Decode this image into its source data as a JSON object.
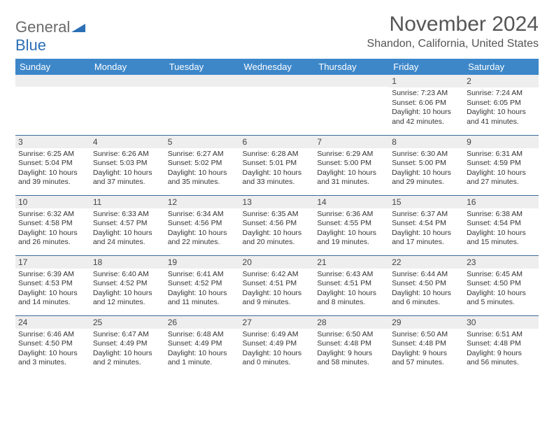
{
  "logo": {
    "word1": "General",
    "word2": "Blue"
  },
  "title": "November 2024",
  "location": "Shandon, California, United States",
  "weekdays": [
    "Sunday",
    "Monday",
    "Tuesday",
    "Wednesday",
    "Thursday",
    "Friday",
    "Saturday"
  ],
  "colors": {
    "header_bg": "#3d87c9",
    "header_text": "#ffffff",
    "daynum_bg": "#eeeeee",
    "cell_border": "#3d6a9a",
    "logo_blue": "#2b6fb5",
    "logo_gray": "#6a6a6a"
  },
  "weeks": [
    [
      {
        "n": "",
        "sr": "",
        "ss": "",
        "dl": ""
      },
      {
        "n": "",
        "sr": "",
        "ss": "",
        "dl": ""
      },
      {
        "n": "",
        "sr": "",
        "ss": "",
        "dl": ""
      },
      {
        "n": "",
        "sr": "",
        "ss": "",
        "dl": ""
      },
      {
        "n": "",
        "sr": "",
        "ss": "",
        "dl": ""
      },
      {
        "n": "1",
        "sr": "Sunrise: 7:23 AM",
        "ss": "Sunset: 6:06 PM",
        "dl": "Daylight: 10 hours and 42 minutes."
      },
      {
        "n": "2",
        "sr": "Sunrise: 7:24 AM",
        "ss": "Sunset: 6:05 PM",
        "dl": "Daylight: 10 hours and 41 minutes."
      }
    ],
    [
      {
        "n": "3",
        "sr": "Sunrise: 6:25 AM",
        "ss": "Sunset: 5:04 PM",
        "dl": "Daylight: 10 hours and 39 minutes."
      },
      {
        "n": "4",
        "sr": "Sunrise: 6:26 AM",
        "ss": "Sunset: 5:03 PM",
        "dl": "Daylight: 10 hours and 37 minutes."
      },
      {
        "n": "5",
        "sr": "Sunrise: 6:27 AM",
        "ss": "Sunset: 5:02 PM",
        "dl": "Daylight: 10 hours and 35 minutes."
      },
      {
        "n": "6",
        "sr": "Sunrise: 6:28 AM",
        "ss": "Sunset: 5:01 PM",
        "dl": "Daylight: 10 hours and 33 minutes."
      },
      {
        "n": "7",
        "sr": "Sunrise: 6:29 AM",
        "ss": "Sunset: 5:00 PM",
        "dl": "Daylight: 10 hours and 31 minutes."
      },
      {
        "n": "8",
        "sr": "Sunrise: 6:30 AM",
        "ss": "Sunset: 5:00 PM",
        "dl": "Daylight: 10 hours and 29 minutes."
      },
      {
        "n": "9",
        "sr": "Sunrise: 6:31 AM",
        "ss": "Sunset: 4:59 PM",
        "dl": "Daylight: 10 hours and 27 minutes."
      }
    ],
    [
      {
        "n": "10",
        "sr": "Sunrise: 6:32 AM",
        "ss": "Sunset: 4:58 PM",
        "dl": "Daylight: 10 hours and 26 minutes."
      },
      {
        "n": "11",
        "sr": "Sunrise: 6:33 AM",
        "ss": "Sunset: 4:57 PM",
        "dl": "Daylight: 10 hours and 24 minutes."
      },
      {
        "n": "12",
        "sr": "Sunrise: 6:34 AM",
        "ss": "Sunset: 4:56 PM",
        "dl": "Daylight: 10 hours and 22 minutes."
      },
      {
        "n": "13",
        "sr": "Sunrise: 6:35 AM",
        "ss": "Sunset: 4:56 PM",
        "dl": "Daylight: 10 hours and 20 minutes."
      },
      {
        "n": "14",
        "sr": "Sunrise: 6:36 AM",
        "ss": "Sunset: 4:55 PM",
        "dl": "Daylight: 10 hours and 19 minutes."
      },
      {
        "n": "15",
        "sr": "Sunrise: 6:37 AM",
        "ss": "Sunset: 4:54 PM",
        "dl": "Daylight: 10 hours and 17 minutes."
      },
      {
        "n": "16",
        "sr": "Sunrise: 6:38 AM",
        "ss": "Sunset: 4:54 PM",
        "dl": "Daylight: 10 hours and 15 minutes."
      }
    ],
    [
      {
        "n": "17",
        "sr": "Sunrise: 6:39 AM",
        "ss": "Sunset: 4:53 PM",
        "dl": "Daylight: 10 hours and 14 minutes."
      },
      {
        "n": "18",
        "sr": "Sunrise: 6:40 AM",
        "ss": "Sunset: 4:52 PM",
        "dl": "Daylight: 10 hours and 12 minutes."
      },
      {
        "n": "19",
        "sr": "Sunrise: 6:41 AM",
        "ss": "Sunset: 4:52 PM",
        "dl": "Daylight: 10 hours and 11 minutes."
      },
      {
        "n": "20",
        "sr": "Sunrise: 6:42 AM",
        "ss": "Sunset: 4:51 PM",
        "dl": "Daylight: 10 hours and 9 minutes."
      },
      {
        "n": "21",
        "sr": "Sunrise: 6:43 AM",
        "ss": "Sunset: 4:51 PM",
        "dl": "Daylight: 10 hours and 8 minutes."
      },
      {
        "n": "22",
        "sr": "Sunrise: 6:44 AM",
        "ss": "Sunset: 4:50 PM",
        "dl": "Daylight: 10 hours and 6 minutes."
      },
      {
        "n": "23",
        "sr": "Sunrise: 6:45 AM",
        "ss": "Sunset: 4:50 PM",
        "dl": "Daylight: 10 hours and 5 minutes."
      }
    ],
    [
      {
        "n": "24",
        "sr": "Sunrise: 6:46 AM",
        "ss": "Sunset: 4:50 PM",
        "dl": "Daylight: 10 hours and 3 minutes."
      },
      {
        "n": "25",
        "sr": "Sunrise: 6:47 AM",
        "ss": "Sunset: 4:49 PM",
        "dl": "Daylight: 10 hours and 2 minutes."
      },
      {
        "n": "26",
        "sr": "Sunrise: 6:48 AM",
        "ss": "Sunset: 4:49 PM",
        "dl": "Daylight: 10 hours and 1 minute."
      },
      {
        "n": "27",
        "sr": "Sunrise: 6:49 AM",
        "ss": "Sunset: 4:49 PM",
        "dl": "Daylight: 10 hours and 0 minutes."
      },
      {
        "n": "28",
        "sr": "Sunrise: 6:50 AM",
        "ss": "Sunset: 4:48 PM",
        "dl": "Daylight: 9 hours and 58 minutes."
      },
      {
        "n": "29",
        "sr": "Sunrise: 6:50 AM",
        "ss": "Sunset: 4:48 PM",
        "dl": "Daylight: 9 hours and 57 minutes."
      },
      {
        "n": "30",
        "sr": "Sunrise: 6:51 AM",
        "ss": "Sunset: 4:48 PM",
        "dl": "Daylight: 9 hours and 56 minutes."
      }
    ]
  ]
}
